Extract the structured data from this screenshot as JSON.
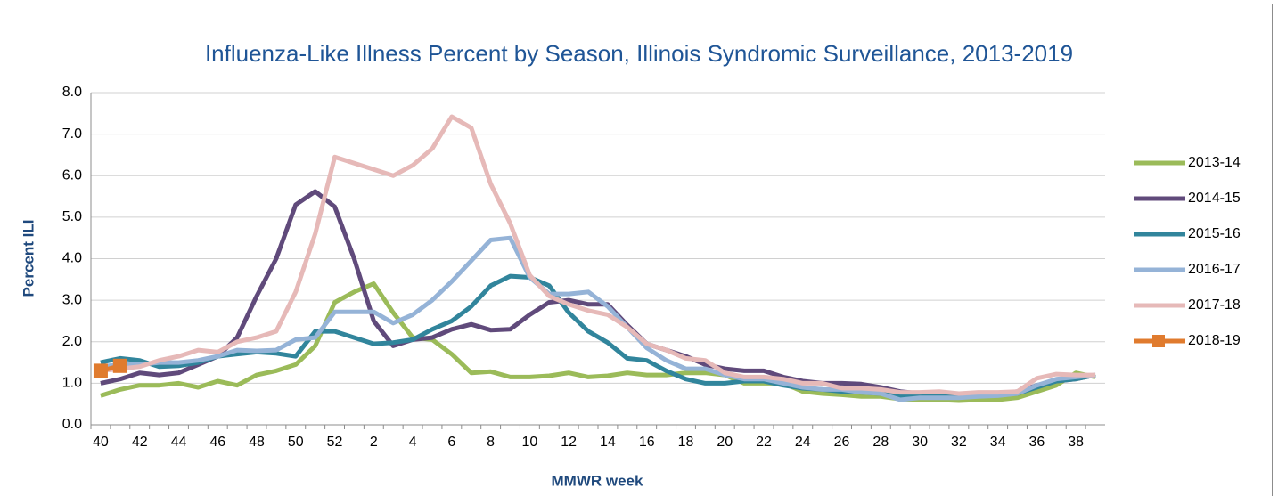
{
  "chart_data": {
    "type": "line",
    "title": "Influenza-Like Illness Percent by Season, Illinois Syndromic Surveillance, 2013-2019",
    "x_label": "MMWR week",
    "y_label": "Percent ILI",
    "categories": [
      "40",
      null,
      "42",
      null,
      "44",
      null,
      "46",
      null,
      "48",
      null,
      "50",
      null,
      "52",
      null,
      "2",
      null,
      "4",
      null,
      "6",
      null,
      "8",
      null,
      "10",
      null,
      "12",
      null,
      "14",
      null,
      "16",
      null,
      "18",
      null,
      "20",
      null,
      "22",
      null,
      "24",
      null,
      "26",
      null,
      "28",
      null,
      "30",
      null,
      "32",
      null,
      "34",
      null,
      "36",
      null,
      "38",
      null
    ],
    "ylim": [
      0,
      8
    ],
    "yticks": [
      {
        "value": 0,
        "label": "0.0"
      },
      {
        "value": 1,
        "label": "1.0"
      },
      {
        "value": 2,
        "label": "2.0"
      },
      {
        "value": 3,
        "label": "3.0"
      },
      {
        "value": 4,
        "label": "4.0"
      },
      {
        "value": 5,
        "label": "5.0"
      },
      {
        "value": 6,
        "label": "6.0"
      },
      {
        "value": 7,
        "label": "7.0"
      },
      {
        "value": 8,
        "label": "8.0"
      }
    ],
    "grid": true,
    "legend": "right",
    "series": [
      {
        "name": "2013-14",
        "color": "#9bbb59",
        "values": [
          0.7,
          0.85,
          0.95,
          0.95,
          1.0,
          0.9,
          1.05,
          0.95,
          1.2,
          1.3,
          1.45,
          1.9,
          2.95,
          3.2,
          3.4,
          2.7,
          2.1,
          2.05,
          1.7,
          1.25,
          1.28,
          1.15,
          1.15,
          1.18,
          1.25,
          1.15,
          1.18,
          1.25,
          1.2,
          1.2,
          1.25,
          1.25,
          1.2,
          1.0,
          1.0,
          1.0,
          0.8,
          0.75,
          0.72,
          0.68,
          0.68,
          0.62,
          0.6,
          0.6,
          0.58,
          0.6,
          0.6,
          0.65,
          0.8,
          0.95,
          1.25,
          1.15
        ]
      },
      {
        "name": "2014-15",
        "color": "#604a7b",
        "values": [
          1.0,
          1.1,
          1.25,
          1.2,
          1.25,
          1.45,
          1.65,
          2.1,
          3.1,
          4.0,
          5.3,
          5.62,
          5.25,
          4.0,
          2.5,
          1.9,
          2.05,
          2.1,
          2.3,
          2.42,
          2.28,
          2.3,
          2.65,
          2.95,
          3.0,
          2.9,
          2.9,
          2.4,
          1.95,
          1.8,
          1.65,
          1.45,
          1.35,
          1.3,
          1.3,
          1.15,
          1.05,
          1.0,
          1.0,
          0.98,
          0.9,
          0.8,
          0.75,
          0.75,
          0.72,
          0.75,
          0.75,
          0.8,
          0.95,
          1.05,
          1.1,
          1.2
        ]
      },
      {
        "name": "2015-16",
        "color": "#31859c",
        "values": [
          1.5,
          1.6,
          1.55,
          1.4,
          1.42,
          1.5,
          1.65,
          1.7,
          1.75,
          1.72,
          1.65,
          2.25,
          2.25,
          2.1,
          1.95,
          1.98,
          2.05,
          2.3,
          2.5,
          2.85,
          3.35,
          3.58,
          3.55,
          3.35,
          2.7,
          2.25,
          1.98,
          1.6,
          1.55,
          1.3,
          1.1,
          1.0,
          1.0,
          1.05,
          1.05,
          0.95,
          0.88,
          0.85,
          0.8,
          0.78,
          0.75,
          0.7,
          0.68,
          0.68,
          0.68,
          0.7,
          0.72,
          0.75,
          0.9,
          1.05,
          1.1,
          1.2
        ]
      },
      {
        "name": "2016-17",
        "color": "#95b3d7",
        "values": [
          1.4,
          1.45,
          1.45,
          1.5,
          1.5,
          1.55,
          1.65,
          1.8,
          1.78,
          1.8,
          2.05,
          2.1,
          2.72,
          2.72,
          2.72,
          2.45,
          2.65,
          3.0,
          3.45,
          3.95,
          4.45,
          4.5,
          3.55,
          3.15,
          3.15,
          3.2,
          2.85,
          2.35,
          1.85,
          1.55,
          1.35,
          1.35,
          1.2,
          1.1,
          1.1,
          1.0,
          0.9,
          0.85,
          0.85,
          0.78,
          0.75,
          0.6,
          0.65,
          0.65,
          0.65,
          0.68,
          0.7,
          0.75,
          0.95,
          1.1,
          1.15,
          1.2
        ]
      },
      {
        "name": "2017-18",
        "color": "#e6b9b8",
        "values": [
          1.3,
          1.35,
          1.4,
          1.55,
          1.65,
          1.8,
          1.75,
          2.0,
          2.1,
          2.25,
          3.2,
          4.6,
          6.45,
          6.3,
          6.15,
          6.0,
          6.25,
          6.65,
          7.42,
          7.15,
          5.8,
          4.85,
          3.6,
          3.1,
          2.9,
          2.75,
          2.65,
          2.35,
          1.95,
          1.8,
          1.6,
          1.55,
          1.25,
          1.15,
          1.15,
          1.1,
          1.0,
          1.0,
          0.88,
          0.88,
          0.85,
          0.78,
          0.78,
          0.8,
          0.75,
          0.78,
          0.78,
          0.8,
          1.12,
          1.22,
          1.2,
          1.2
        ]
      },
      {
        "name": "2018-19",
        "color": "#e07b2e",
        "marker": "square",
        "values": [
          1.3,
          1.42,
          null,
          null,
          null,
          null,
          null,
          null,
          null,
          null,
          null,
          null,
          null,
          null,
          null,
          null,
          null,
          null,
          null,
          null,
          null,
          null,
          null,
          null,
          null,
          null,
          null,
          null,
          null,
          null,
          null,
          null,
          null,
          null,
          null,
          null,
          null,
          null,
          null,
          null,
          null,
          null,
          null,
          null,
          null,
          null,
          null,
          null,
          null,
          null,
          null,
          null
        ]
      }
    ]
  }
}
